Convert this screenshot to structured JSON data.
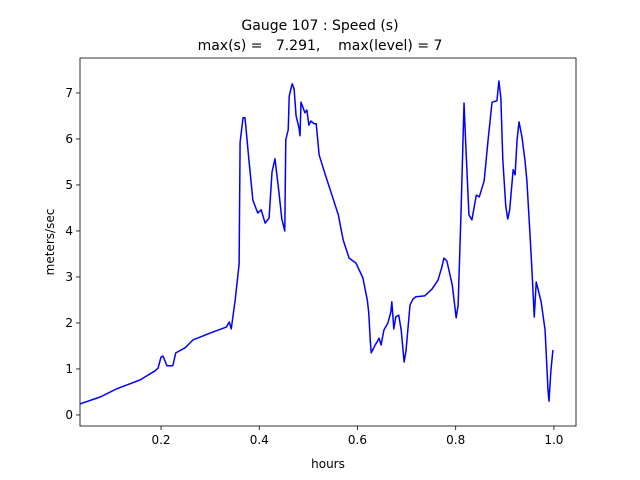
{
  "chart_data": {
    "type": "line",
    "title": "Gauge 107 : Speed (s)",
    "subtitle": "max(s) =   7.291,    max(level) = 7",
    "xlabel": "hours",
    "ylabel": "meters/sec",
    "color": "#0000ff",
    "grid": false,
    "xlim": [
      0.035,
      1.045
    ],
    "ylim": [
      -0.24,
      7.76
    ],
    "xticks": [
      0.2,
      0.4,
      0.6,
      0.8,
      {
        "value": 1,
        "label": "1.0"
      }
    ],
    "yticks": [
      0,
      1,
      2,
      3,
      4,
      5,
      6,
      7
    ],
    "x": [
      0.035,
      0.076,
      0.11,
      0.157,
      0.188,
      0.194,
      0.2,
      0.204,
      0.212,
      0.224,
      0.23,
      0.249,
      0.265,
      0.3,
      0.333,
      0.339,
      0.343,
      0.351,
      0.359,
      0.361,
      0.367,
      0.371,
      0.379,
      0.387,
      0.397,
      0.404,
      0.412,
      0.42,
      0.426,
      0.432,
      0.44,
      0.446,
      0.452,
      0.454,
      0.459,
      0.461,
      0.467,
      0.471,
      0.475,
      0.481,
      0.483,
      0.485,
      0.493,
      0.497,
      0.501,
      0.505,
      0.512,
      0.516,
      0.522,
      0.534,
      0.548,
      0.561,
      0.571,
      0.583,
      0.597,
      0.611,
      0.62,
      0.623,
      0.626,
      0.628,
      0.636,
      0.64,
      0.644,
      0.648,
      0.654,
      0.662,
      0.668,
      0.67,
      0.674,
      0.678,
      0.684,
      0.689,
      0.695,
      0.699,
      0.707,
      0.713,
      0.719,
      0.737,
      0.752,
      0.764,
      0.772,
      0.776,
      0.782,
      0.793,
      0.801,
      0.805,
      0.811,
      0.817,
      0.821,
      0.827,
      0.833,
      0.842,
      0.848,
      0.858,
      0.866,
      0.874,
      0.884,
      0.888,
      0.892,
      0.896,
      0.902,
      0.906,
      0.91,
      0.917,
      0.921,
      0.925,
      0.929,
      0.935,
      0.941,
      0.945,
      0.952,
      0.956,
      0.96,
      0.964,
      0.968,
      0.974,
      0.982,
      0.988,
      0.99,
      0.994,
      0.998
    ],
    "values": [
      0.24,
      0.39,
      0.57,
      0.76,
      0.96,
      1.02,
      1.26,
      1.28,
      1.07,
      1.07,
      1.35,
      1.46,
      1.63,
      1.78,
      1.91,
      2.02,
      1.87,
      2.5,
      3.28,
      5.93,
      6.46,
      6.46,
      5.54,
      4.67,
      4.39,
      4.46,
      4.17,
      4.28,
      5.28,
      5.57,
      4.85,
      4.26,
      4.0,
      5.98,
      6.2,
      6.93,
      7.2,
      7.09,
      6.5,
      6.24,
      6.07,
      6.8,
      6.57,
      6.63,
      6.3,
      6.39,
      6.33,
      6.33,
      5.65,
      5.24,
      4.78,
      4.35,
      3.8,
      3.41,
      3.3,
      2.98,
      2.5,
      2.22,
      1.63,
      1.35,
      1.52,
      1.59,
      1.67,
      1.52,
      1.85,
      2.0,
      2.24,
      2.46,
      1.87,
      2.13,
      2.17,
      1.85,
      1.15,
      1.41,
      2.39,
      2.52,
      2.57,
      2.59,
      2.74,
      2.93,
      3.22,
      3.41,
      3.35,
      2.83,
      2.11,
      2.39,
      4.46,
      6.78,
      5.76,
      4.35,
      4.24,
      4.78,
      4.74,
      5.09,
      5.98,
      6.8,
      6.83,
      7.26,
      6.89,
      5.54,
      4.54,
      4.26,
      4.46,
      5.33,
      5.22,
      5.98,
      6.37,
      6.04,
      5.54,
      5.09,
      3.8,
      3.0,
      2.13,
      2.89,
      2.72,
      2.46,
      1.85,
      0.54,
      0.3,
      0.98,
      1.41
    ]
  }
}
